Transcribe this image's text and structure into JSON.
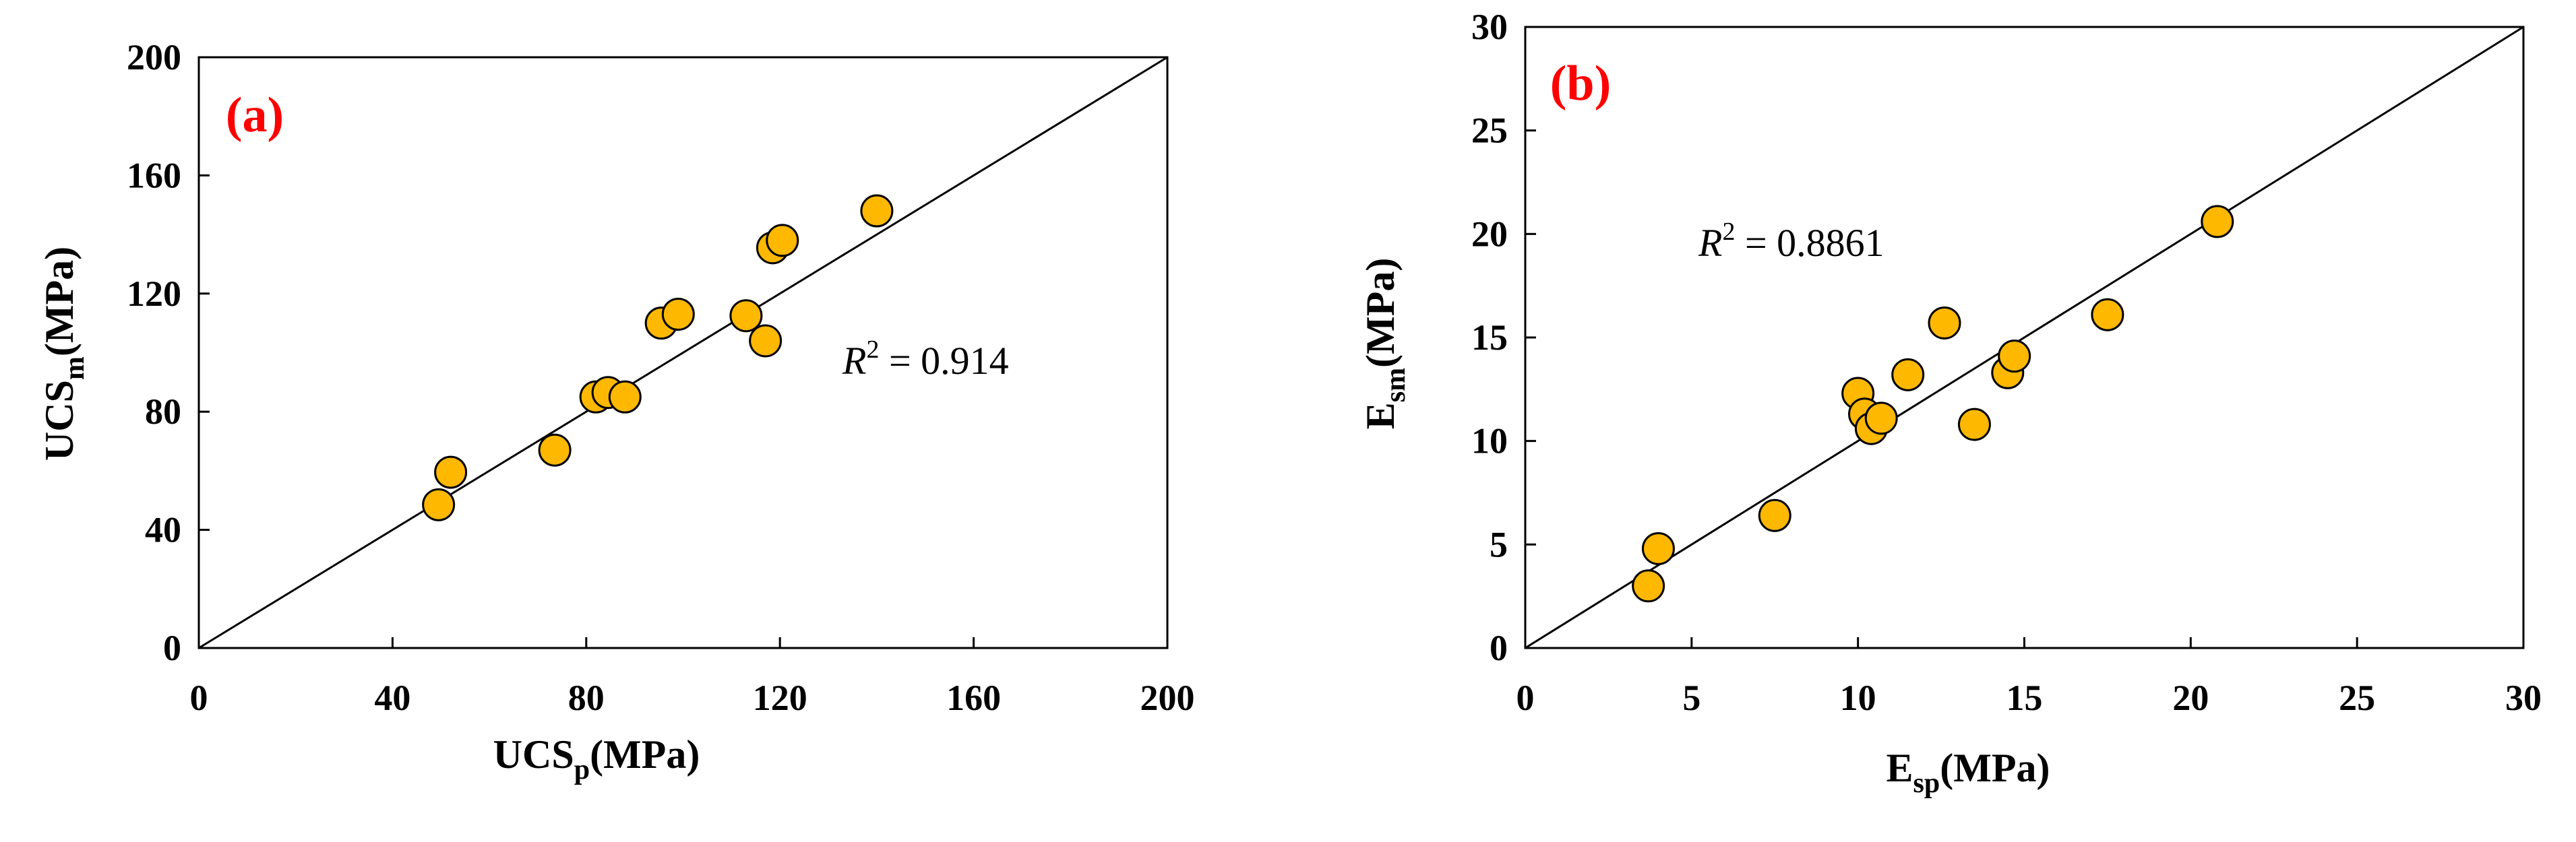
{
  "colors": {
    "marker_fill": "#FFB800",
    "marker_edge": "#000000",
    "panel_label": "#FF0000",
    "line": "#000000"
  },
  "chart_data": [
    {
      "type": "scatter",
      "panel_label": "(a)",
      "xlabel": {
        "base": "UCS",
        "sub": "p",
        "unit": "(MPa)"
      },
      "ylabel": {
        "base": "UCS",
        "sub": "m",
        "unit": "(MPa)"
      },
      "xlim": [
        0,
        200
      ],
      "ylim": [
        0,
        200
      ],
      "xticks": [
        0,
        40,
        80,
        120,
        160,
        200
      ],
      "yticks": [
        0,
        40,
        80,
        120,
        160,
        200
      ],
      "reference_line": "y = x",
      "annotation": {
        "var": "R",
        "exp": "2",
        "text": " = 0.914"
      },
      "points": [
        {
          "x": 49.5,
          "y": 48.5
        },
        {
          "x": 52,
          "y": 59.5
        },
        {
          "x": 73.5,
          "y": 67
        },
        {
          "x": 82,
          "y": 85
        },
        {
          "x": 84.5,
          "y": 86.5
        },
        {
          "x": 88,
          "y": 85
        },
        {
          "x": 95.5,
          "y": 110
        },
        {
          "x": 99,
          "y": 113
        },
        {
          "x": 113,
          "y": 112.5
        },
        {
          "x": 117,
          "y": 104
        },
        {
          "x": 118.5,
          "y": 135.5
        },
        {
          "x": 120.5,
          "y": 138
        },
        {
          "x": 140,
          "y": 148
        }
      ]
    },
    {
      "type": "scatter",
      "panel_label": "(b)",
      "xlabel": {
        "base": "E",
        "sub": "sp",
        "unit": "(MPa)"
      },
      "ylabel": {
        "base": "E",
        "sub": "sm",
        "unit": "(MPa)"
      },
      "xlim": [
        0,
        30
      ],
      "ylim": [
        0,
        30
      ],
      "xticks": [
        0,
        5,
        10,
        15,
        20,
        25,
        30
      ],
      "yticks": [
        0,
        5,
        10,
        15,
        20,
        25,
        30
      ],
      "reference_line": "y = x",
      "annotation": {
        "var": "R",
        "exp": "2",
        "text": " = 0.8861"
      },
      "points": [
        {
          "x": 3.7,
          "y": 3.0
        },
        {
          "x": 4.0,
          "y": 4.8
        },
        {
          "x": 7.5,
          "y": 6.4
        },
        {
          "x": 10.0,
          "y": 12.3
        },
        {
          "x": 10.2,
          "y": 11.3
        },
        {
          "x": 10.4,
          "y": 10.6
        },
        {
          "x": 10.7,
          "y": 11.1
        },
        {
          "x": 11.5,
          "y": 13.2
        },
        {
          "x": 12.6,
          "y": 15.7
        },
        {
          "x": 13.5,
          "y": 10.8
        },
        {
          "x": 14.5,
          "y": 13.3
        },
        {
          "x": 14.7,
          "y": 14.1
        },
        {
          "x": 17.5,
          "y": 16.1
        },
        {
          "x": 20.8,
          "y": 20.6
        }
      ]
    }
  ]
}
